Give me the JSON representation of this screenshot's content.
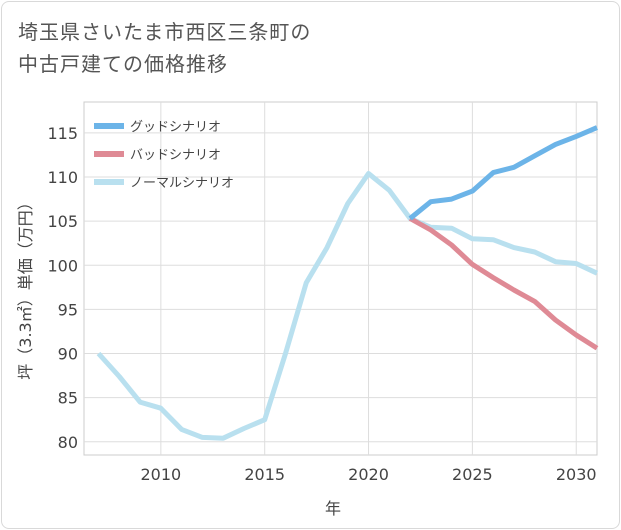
{
  "chart_data": {
    "type": "line",
    "title": "埼玉県さいたま市西区三条町の\n中古戸建ての価格推移",
    "xlabel": "年",
    "ylabel": "坪（3.3㎡）単価（万円）",
    "xlim": [
      2006.3,
      2031
    ],
    "ylim": [
      78.5,
      118.5
    ],
    "xticks": [
      2010,
      2015,
      2020,
      2025,
      2030
    ],
    "yticks": [
      80,
      85,
      90,
      95,
      100,
      105,
      110,
      115
    ],
    "grid": true,
    "legend_position": "top-left",
    "series": [
      {
        "name": "グッドシナリオ",
        "color": "#6cb4e8",
        "x": [
          2022,
          2023,
          2024,
          2025,
          2026,
          2027,
          2028,
          2029,
          2030,
          2031
        ],
        "values": [
          105.3,
          107.2,
          107.5,
          108.4,
          110.5,
          111.1,
          112.4,
          113.7,
          114.6,
          115.6
        ]
      },
      {
        "name": "バッドシナリオ",
        "color": "#df8a95",
        "x": [
          2022,
          2023,
          2024,
          2025,
          2026,
          2027,
          2028,
          2029,
          2030,
          2031
        ],
        "values": [
          105.3,
          104.0,
          102.3,
          100.1,
          98.6,
          97.2,
          95.9,
          93.8,
          92.1,
          90.6
        ]
      },
      {
        "name": "ノーマルシナリオ",
        "color": "#b9e0ef",
        "x": [
          2007,
          2008,
          2009,
          2010,
          2011,
          2012,
          2013,
          2014,
          2015,
          2016,
          2017,
          2018,
          2019,
          2020,
          2021,
          2022,
          2023,
          2024,
          2025,
          2026,
          2027,
          2028,
          2029,
          2030,
          2031
        ],
        "values": [
          90.0,
          87.4,
          84.5,
          83.8,
          81.4,
          80.5,
          80.4,
          81.5,
          82.5,
          90.0,
          98.0,
          102.0,
          107.0,
          110.4,
          108.5,
          105.3,
          104.3,
          104.2,
          103.0,
          102.9,
          102.0,
          101.5,
          100.4,
          100.2,
          99.1
        ]
      }
    ]
  }
}
